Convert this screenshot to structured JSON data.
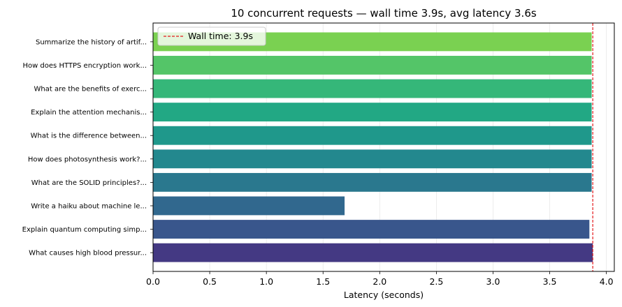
{
  "chart_data": {
    "type": "bar",
    "orientation": "horizontal",
    "title": "10 concurrent requests — wall time 3.9s, avg latency 3.6s",
    "xlabel": "Latency (seconds)",
    "ylabel": "",
    "xlim": [
      0,
      4.07
    ],
    "x_ticks": [
      "0.0",
      "0.5",
      "1.0",
      "1.5",
      "2.0",
      "2.5",
      "3.0",
      "3.5",
      "4.0"
    ],
    "grid": "x",
    "legend_position": "top-left",
    "categories": [
      "Summarize the history of artif...",
      "How does HTTPS encryption work...",
      "What are the benefits of exerc...",
      "Explain the attention mechanis...",
      "What is the difference between...",
      "How does photosynthesis work?...",
      "What are the SOLID principles?...",
      "Write a haiku about machine le...",
      "Explain quantum computing simp...",
      "What causes high blood pressur..."
    ],
    "values": [
      3.87,
      3.87,
      3.87,
      3.87,
      3.87,
      3.87,
      3.87,
      1.69,
      3.85,
      3.88
    ],
    "colors": [
      "#7ad151",
      "#54c568",
      "#35b779",
      "#22a884",
      "#1f988b",
      "#23888e",
      "#2a788e",
      "#31688e",
      "#39568c",
      "#443983"
    ],
    "reference_line": {
      "value": 3.88,
      "label": "Wall time: 3.9s",
      "color": "#e41a1c"
    }
  }
}
